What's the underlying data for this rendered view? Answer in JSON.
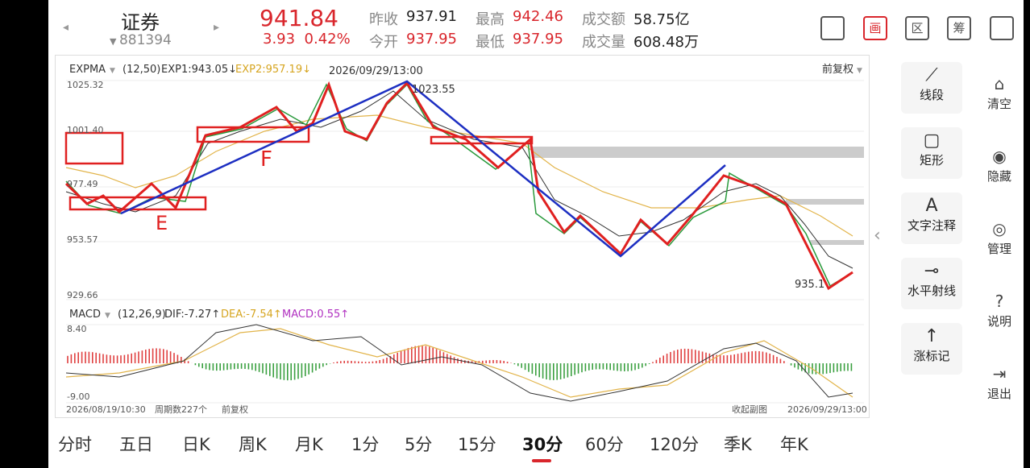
{
  "header": {
    "name": "证券",
    "code": "881394",
    "price": "941.84",
    "change": "3.93",
    "change_pct": "0.42%",
    "stats": [
      {
        "label": "昨收",
        "value": "937.91"
      },
      {
        "label": "最高",
        "value": "942.46"
      },
      {
        "label": "成交额",
        "value": "58.75亿"
      },
      {
        "label": "今开",
        "value": "937.95"
      },
      {
        "label": "最低",
        "value": "937.95"
      },
      {
        "label": "成交量",
        "value": "608.48万"
      }
    ],
    "icons": [
      "画",
      "区",
      "筹"
    ]
  },
  "main_chart": {
    "indicator": "EXPMA",
    "params": "(12,50)",
    "exp1": "EXP1:943.05↓",
    "exp2": "EXP2:957.19↓",
    "cursor_time": "2026/09/29/13:00",
    "adjust": "前复权",
    "y_labels": [
      "1025.32",
      "1001.40",
      "977.49",
      "953.57",
      "929.66"
    ],
    "high_label": "1023.55",
    "low_label": "935.1",
    "marks": [
      "E",
      "F"
    ]
  },
  "macd": {
    "indicator": "MACD",
    "params": "(12,26,9)",
    "dif": "DIF:-7.27↑",
    "dea": "DEA:-7.54↑",
    "macd": "MACD:0.55↑",
    "y_labels": [
      "8.40",
      "-9.00"
    ]
  },
  "footer": {
    "start": "2026/08/19/10:30",
    "count": "周期数227个",
    "adjust": "前复权",
    "collapse": "收起副图",
    "end": "2026/09/29/13:00"
  },
  "tools": [
    {
      "icon": "⟋",
      "label": "线段"
    },
    {
      "icon": "▢",
      "label": "矩形"
    },
    {
      "icon": "A",
      "label": "文字注释"
    },
    {
      "icon": "⊸",
      "label": "水平射线"
    },
    {
      "icon": "↑",
      "label": "涨标记"
    }
  ],
  "side": [
    "清空",
    "隐藏",
    "管理",
    "说明",
    "退出"
  ],
  "tabs": [
    "分时",
    "五日",
    "日K",
    "周K",
    "月K",
    "1分",
    "5分",
    "15分",
    "30分",
    "60分",
    "120分",
    "季K",
    "年K"
  ],
  "selected_tab": 8
}
